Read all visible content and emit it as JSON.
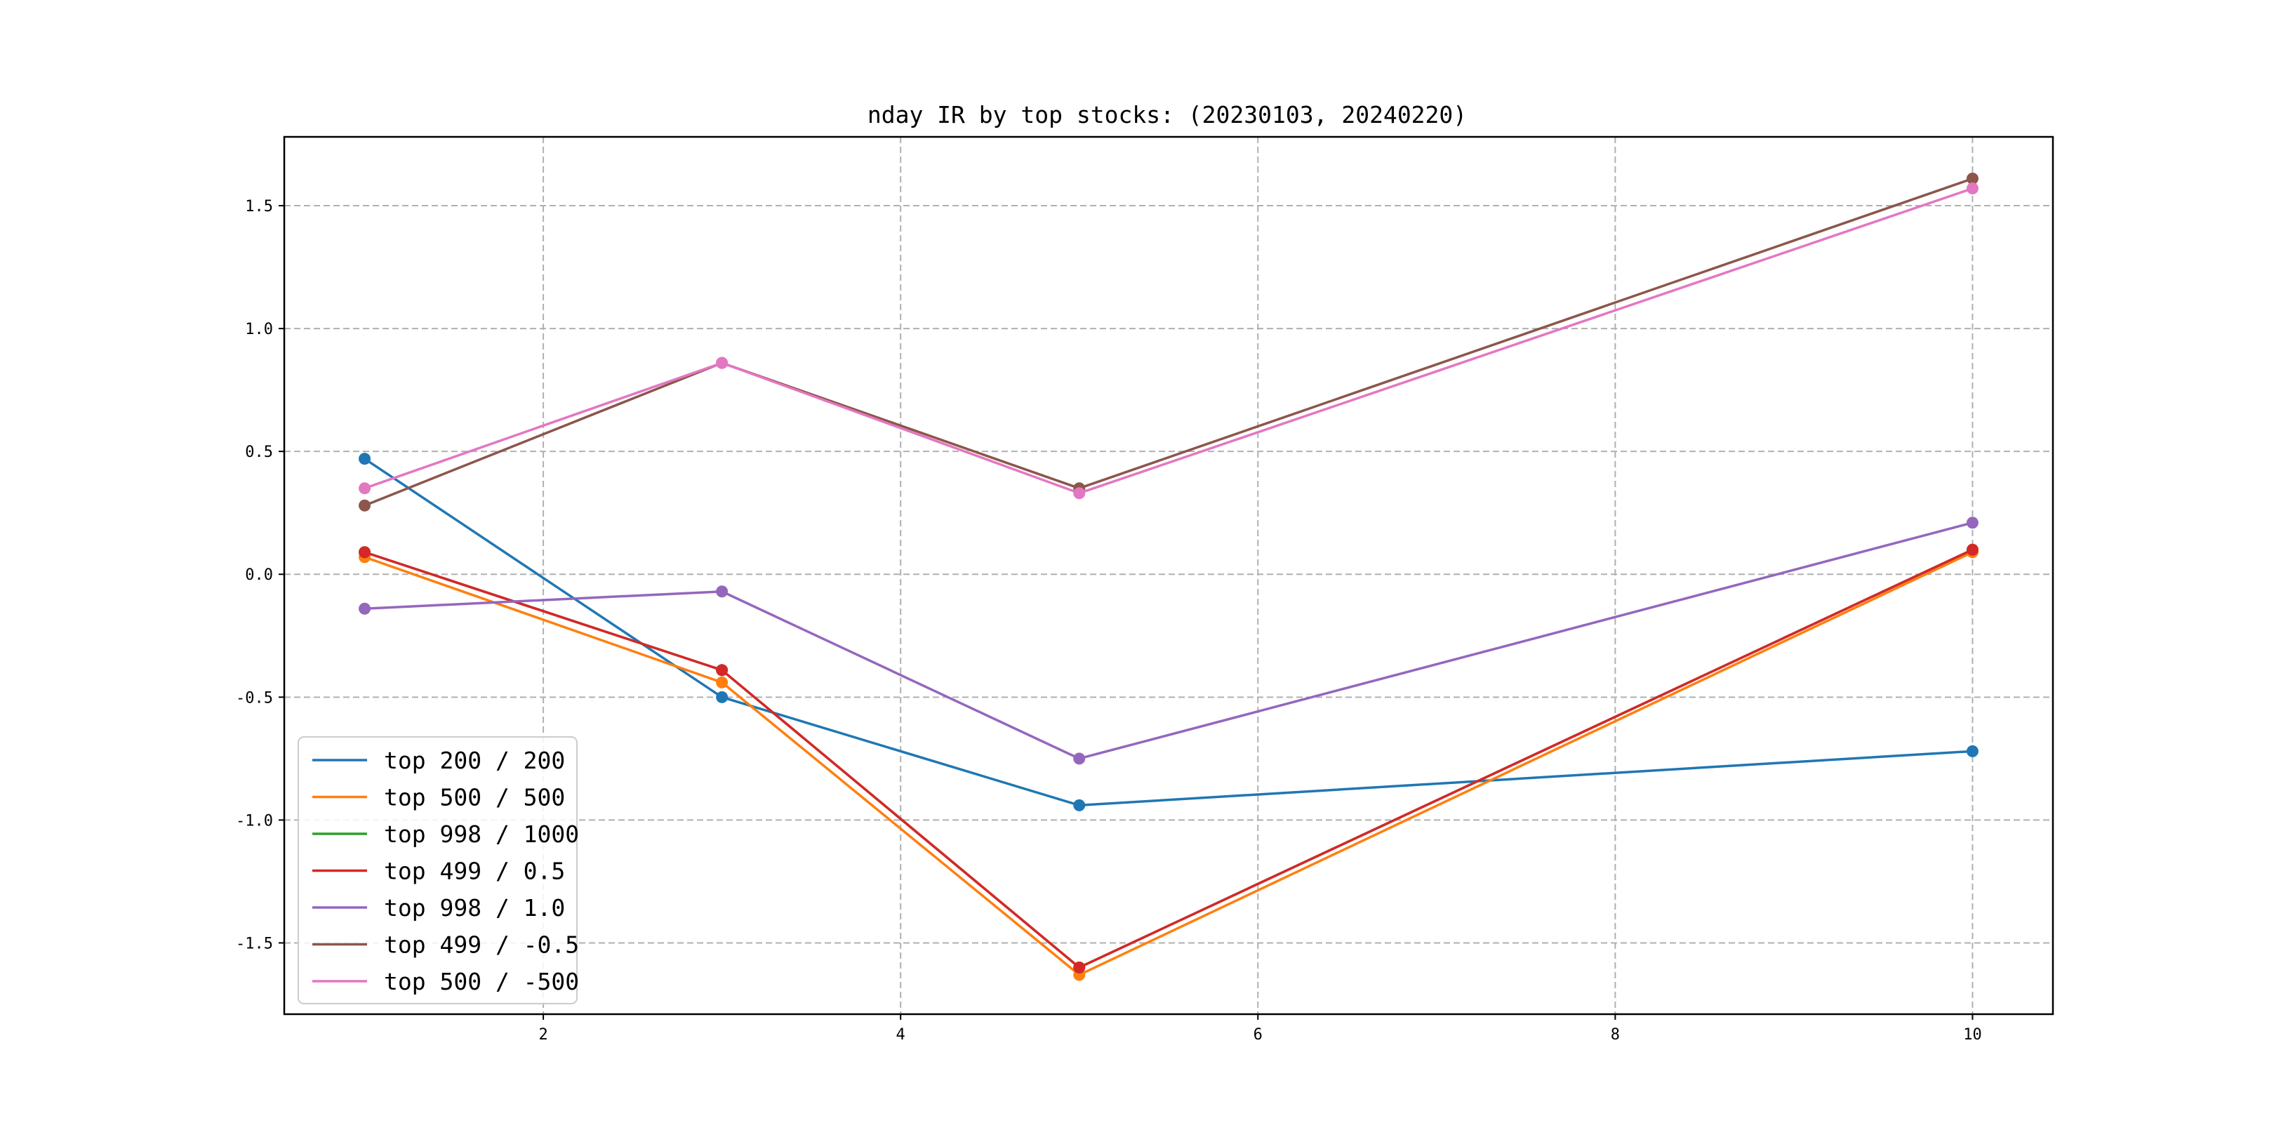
{
  "chart_data": {
    "type": "line",
    "title": "nday IR by top stocks: (20230103, 20240220)",
    "xlabel": "",
    "ylabel": "",
    "x": [
      1,
      3,
      5,
      10
    ],
    "xlim": [
      0.55,
      10.45
    ],
    "ylim": [
      -1.79,
      1.78
    ],
    "xticks": [
      2,
      4,
      6,
      8,
      10
    ],
    "yticks": [
      -1.5,
      -1.0,
      -0.5,
      0.0,
      0.5,
      1.0,
      1.5
    ],
    "xtick_labels": [
      "2",
      "4",
      "6",
      "8",
      "10"
    ],
    "ytick_labels": [
      "-1.5",
      "-1.0",
      "-0.5",
      "0.0",
      "0.5",
      "1.0",
      "1.5"
    ],
    "grid": true,
    "legend_position": "lower-left",
    "markers": true,
    "series": [
      {
        "name": "top 200 / 200",
        "color": "#1f77b4",
        "values": [
          0.47,
          -0.5,
          -0.94,
          -0.72
        ]
      },
      {
        "name": "top 500 / 500",
        "color": "#ff7f0e",
        "values": [
          0.07,
          -0.44,
          -1.63,
          0.09
        ]
      },
      {
        "name": "top 998 / 1000",
        "color": "#2ca02c",
        "values": [
          0.09,
          -0.39,
          -1.6,
          0.1
        ]
      },
      {
        "name": "top 499 / 0.5",
        "color": "#d62728",
        "values": [
          0.09,
          -0.39,
          -1.6,
          0.1
        ]
      },
      {
        "name": "top 998 / 1.0",
        "color": "#9467bd",
        "values": [
          -0.14,
          -0.07,
          -0.75,
          0.21
        ]
      },
      {
        "name": "top 499 / -0.5",
        "color": "#8c564b",
        "values": [
          0.28,
          0.86,
          0.35,
          1.61
        ]
      },
      {
        "name": "top 500 / -500",
        "color": "#e377c2",
        "values": [
          0.35,
          0.86,
          0.33,
          1.57
        ]
      }
    ]
  }
}
